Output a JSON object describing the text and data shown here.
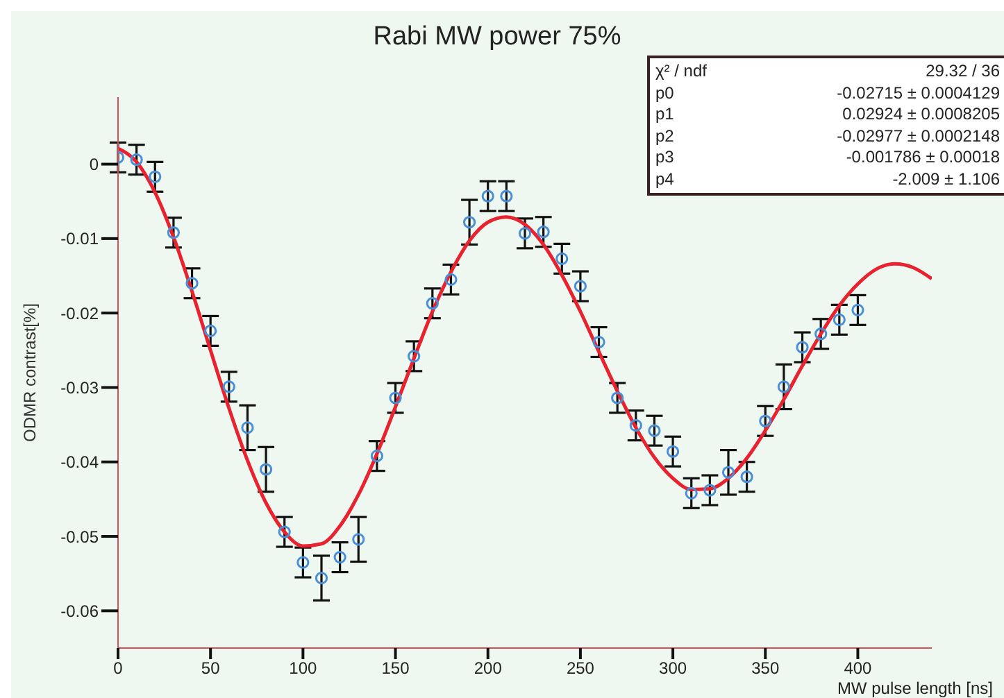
{
  "chart_data": {
    "type": "scatter",
    "title": "Rabi MW power 75%",
    "xlabel": "MW pulse length [ns]",
    "ylabel": "ODMR contrast[%]",
    "x": [
      0,
      10,
      20,
      30,
      40,
      50,
      60,
      70,
      80,
      90,
      100,
      110,
      120,
      130,
      140,
      150,
      160,
      170,
      180,
      190,
      200,
      210,
      220,
      230,
      240,
      250,
      260,
      270,
      280,
      290,
      300,
      310,
      320,
      330,
      340,
      350,
      360,
      370,
      380,
      390,
      400
    ],
    "series": [
      {
        "color": "#4a8fd6",
        "marker": "circle",
        "values": [
          0.0009,
          0.0006,
          -0.0017,
          -0.0092,
          -0.016,
          -0.0224,
          -0.0299,
          -0.0354,
          -0.041,
          -0.0494,
          -0.0535,
          -0.0556,
          -0.0528,
          -0.0504,
          -0.0392,
          -0.0314,
          -0.0258,
          -0.0187,
          -0.0155,
          -0.0078,
          -0.0043,
          -0.0043,
          -0.0093,
          -0.0091,
          -0.0127,
          -0.0164,
          -0.0239,
          -0.0314,
          -0.0351,
          -0.0358,
          -0.0386,
          -0.0442,
          -0.0438,
          -0.0414,
          -0.042,
          -0.0345,
          -0.0299,
          -0.0246,
          -0.0228,
          -0.0209,
          -0.0196
        ],
        "errors": [
          0.002,
          0.002,
          0.002,
          0.002,
          0.002,
          0.002,
          0.002,
          0.003,
          0.003,
          0.002,
          0.002,
          0.003,
          0.002,
          0.003,
          0.002,
          0.002,
          0.002,
          0.002,
          0.002,
          0.003,
          0.002,
          0.002,
          0.002,
          0.002,
          0.002,
          0.002,
          0.002,
          0.002,
          0.002,
          0.002,
          0.002,
          0.002,
          0.002,
          0.003,
          0.002,
          0.002,
          0.003,
          0.002,
          0.002,
          0.002,
          0.002
        ]
      },
      {
        "type": "line",
        "color": "#e8222e",
        "marker": "none",
        "x": [
          0,
          10,
          20,
          30,
          40,
          50,
          60,
          70,
          80,
          90,
          100,
          110,
          120,
          130,
          140,
          150,
          160,
          170,
          180,
          190,
          200,
          210,
          220,
          230,
          240,
          250,
          260,
          270,
          280,
          290,
          300,
          310,
          320,
          330,
          340,
          350,
          360,
          370,
          380,
          390,
          400,
          410,
          420,
          430,
          440
        ],
        "values": [
          0.0021,
          0.0003,
          -0.0038,
          -0.0098,
          -0.0171,
          -0.025,
          -0.0328,
          -0.0398,
          -0.0455,
          -0.0494,
          -0.0513,
          -0.051,
          -0.0486,
          -0.0444,
          -0.0389,
          -0.0326,
          -0.0261,
          -0.0198,
          -0.0145,
          -0.0103,
          -0.0078,
          -0.0071,
          -0.0081,
          -0.0108,
          -0.0149,
          -0.0198,
          -0.0252,
          -0.0305,
          -0.0354,
          -0.0394,
          -0.0422,
          -0.0437,
          -0.0436,
          -0.0422,
          -0.0395,
          -0.0358,
          -0.0316,
          -0.0271,
          -0.0228,
          -0.019,
          -0.0161,
          -0.0141,
          -0.0134,
          -0.0139,
          -0.0154
        ]
      }
    ],
    "xlim": [
      0,
      440
    ],
    "xticks": [
      0,
      50,
      100,
      150,
      200,
      250,
      300,
      350,
      400
    ],
    "ylim": [
      -0.065,
      0.009
    ],
    "yticks": [
      0,
      -0.01,
      -0.02,
      -0.03,
      -0.04,
      -0.05,
      -0.06
    ],
    "grid": false,
    "annotations": [
      "χ² / ndf 29.32 / 36",
      "p0 -0.02715 ± 0.0004129",
      "p1 0.02924 ± 0.0008205",
      "p2 -0.02977 ± 0.0002148",
      "p3 -0.001786 ± 0.00018",
      "p4 -2.009 ± 1.106"
    ]
  }
}
